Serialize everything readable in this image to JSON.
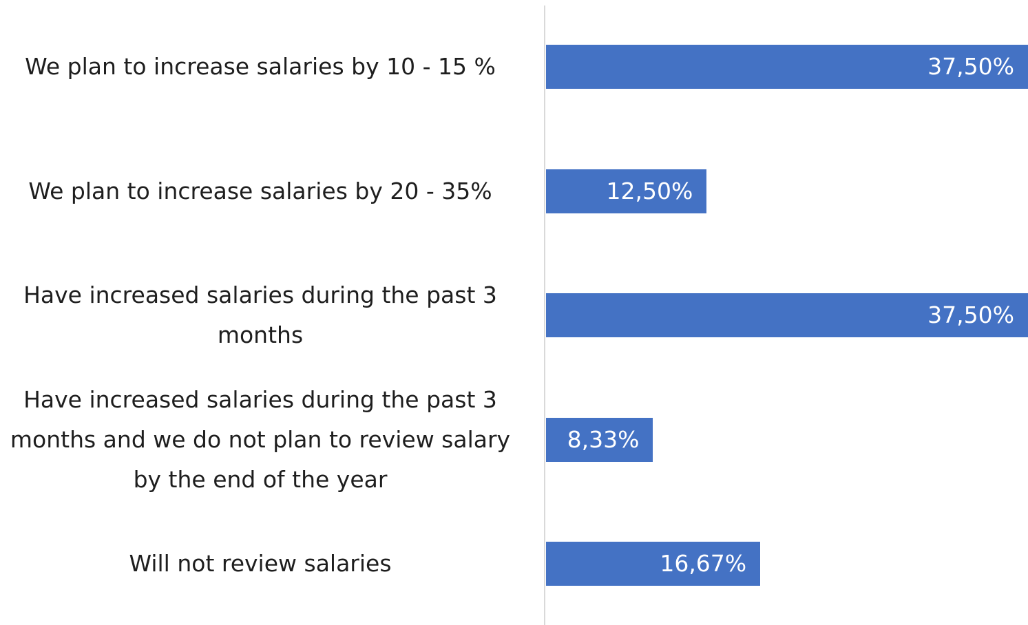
{
  "chart_data": {
    "type": "bar",
    "orientation": "horizontal",
    "categories": [
      "We plan to increase salaries by 10 - 15 %",
      "We plan to increase salaries by 20 - 35%",
      "Have increased salaries during the past 3 months",
      "Have increased salaries during the past 3 months and we do not plan to review salary by the end of the year",
      "Will not review salaries"
    ],
    "values": [
      37.5,
      12.5,
      37.5,
      8.33,
      16.67
    ],
    "value_labels": [
      "37,50%",
      "12,50%",
      "37,50%",
      "8,33%",
      "16,67%"
    ],
    "color": "#4472c4"
  }
}
